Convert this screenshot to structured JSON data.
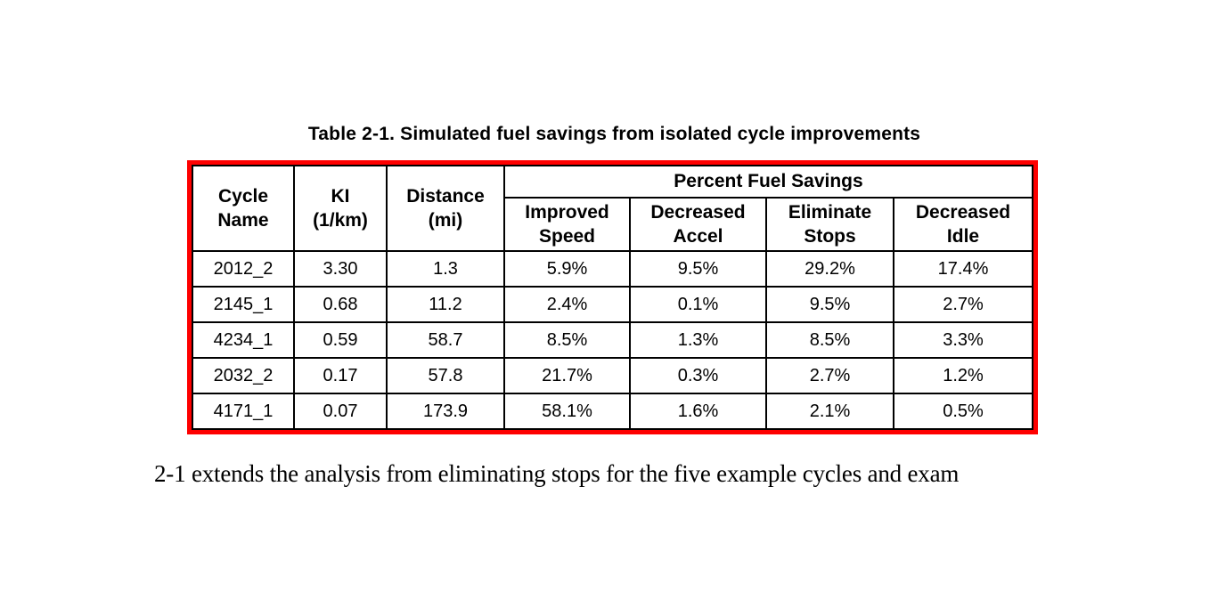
{
  "document": {
    "caption": "Table 2-1. Simulated fuel savings from isolated cycle improvements",
    "body_text": "2-1 extends the analysis from eliminating stops for the five example cycles and exam"
  },
  "table": {
    "annotation_border_color": "#fe0000",
    "grid_color": "#000000",
    "group_header": "Percent Fuel Savings",
    "headers": {
      "cycle_name": "Cycle\nName",
      "ki": "KI\n(1/km)",
      "distance": "Distance\n(mi)",
      "improved_speed": "Improved\nSpeed",
      "decreased_accel": "Decreased\nAccel",
      "eliminate_stops": "Eliminate\nStops",
      "decreased_idle": "Decreased\nIdle"
    },
    "rows": [
      [
        "2012_2",
        "3.30",
        "1.3",
        "5.9%",
        "9.5%",
        "29.2%",
        "17.4%"
      ],
      [
        "2145_1",
        "0.68",
        "11.2",
        "2.4%",
        "0.1%",
        "9.5%",
        "2.7%"
      ],
      [
        "4234_1",
        "0.59",
        "58.7",
        "8.5%",
        "1.3%",
        "8.5%",
        "3.3%"
      ],
      [
        "2032_2",
        "0.17",
        "57.8",
        "21.7%",
        "0.3%",
        "2.7%",
        "1.2%"
      ],
      [
        "4171_1",
        "0.07",
        "173.9",
        "58.1%",
        "1.6%",
        "2.1%",
        "0.5%"
      ]
    ]
  }
}
